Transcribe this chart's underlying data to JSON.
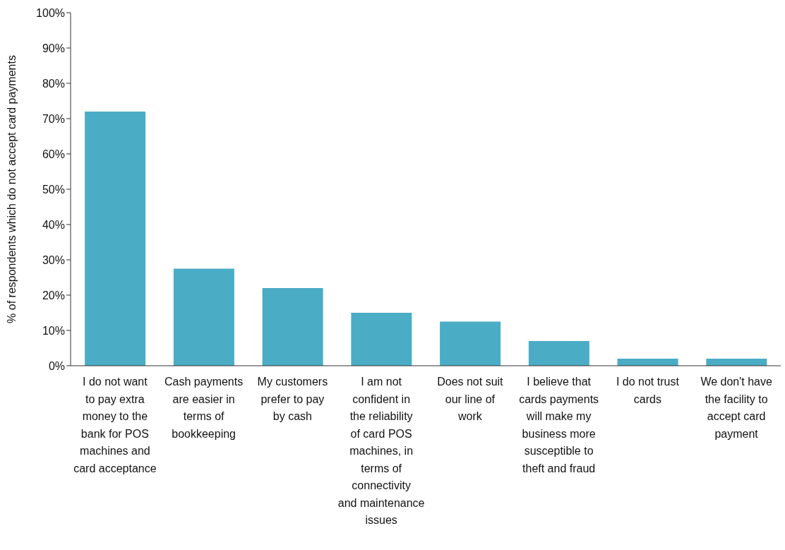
{
  "chart_data": {
    "type": "bar",
    "ylabel": "% of respondents which do not accept card payments",
    "categories": [
      "I do not want to pay extra money to the bank for POS machines and card acceptance",
      "Cash payments are easier in terms of bookkeeping",
      "My customers prefer to pay by cash",
      "I am not confident in the reliability of card POS machines, in terms of connectivity and maintenance issues",
      "Does not suit our line of work",
      "I believe that cards payments will make my business more susceptible to theft and fraud",
      "I do not trust cards",
      "We don't have the facility to accept card payment"
    ],
    "values": [
      72,
      27.5,
      22,
      15,
      12.5,
      7,
      2,
      2
    ],
    "color": "#4bacc6",
    "ylim": [
      0,
      100
    ],
    "yticks": [
      {
        "value": 0,
        "label": "0%"
      },
      {
        "value": 10,
        "label": "10%"
      },
      {
        "value": 20,
        "label": "20%"
      },
      {
        "value": 30,
        "label": "30%"
      },
      {
        "value": 40,
        "label": "40%"
      },
      {
        "value": 50,
        "label": "50%"
      },
      {
        "value": 60,
        "label": "60%"
      },
      {
        "value": 70,
        "label": "70%"
      },
      {
        "value": 80,
        "label": "80%"
      },
      {
        "value": 90,
        "label": "90%"
      },
      {
        "value": 100,
        "label": "100%"
      }
    ],
    "grid": false,
    "legend": false
  }
}
